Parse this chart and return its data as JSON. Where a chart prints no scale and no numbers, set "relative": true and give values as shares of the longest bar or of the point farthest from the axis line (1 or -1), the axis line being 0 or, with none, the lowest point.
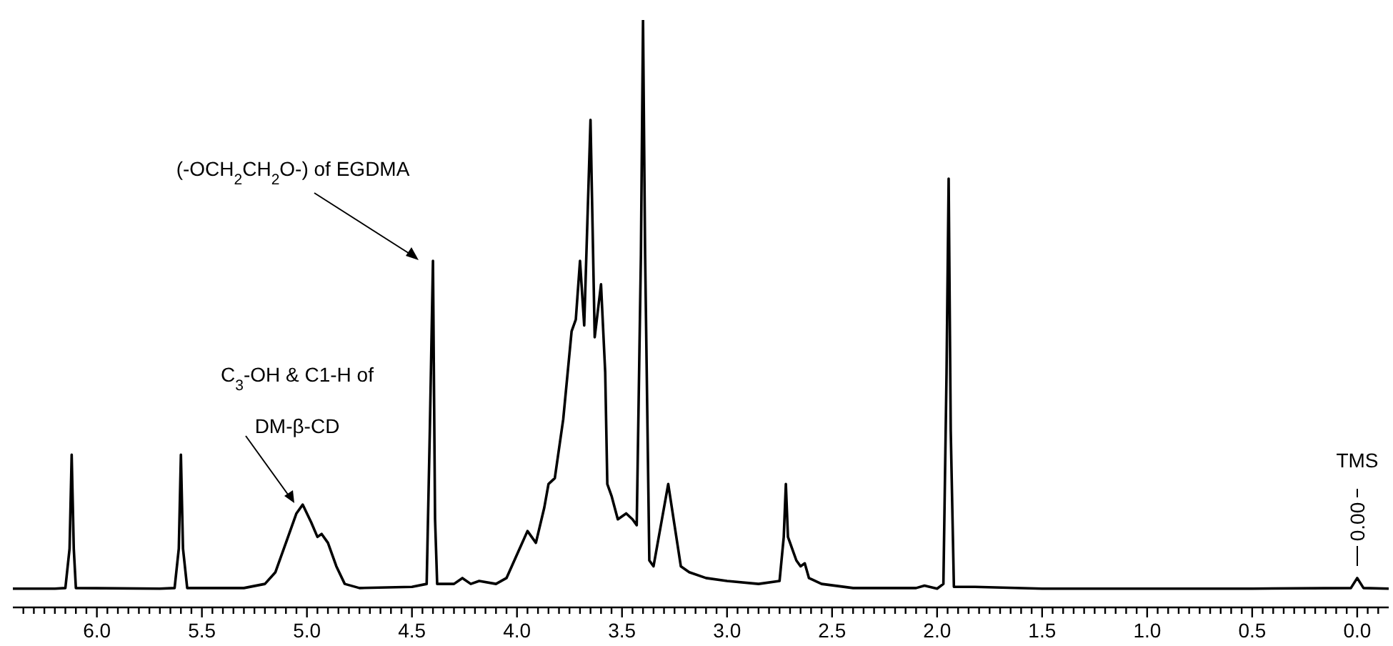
{
  "chart_data": {
    "type": "line",
    "relative": true,
    "marker": "none",
    "line_style": "solid",
    "tick_labels": "x",
    "xlim": [
      6.4,
      -0.15
    ],
    "xticks": [
      {
        "value": 6.35,
        "label": null
      },
      {
        "value": 6.3,
        "label": null
      },
      {
        "value": 6.25,
        "label": null
      },
      {
        "value": 6.2,
        "label": null
      },
      {
        "value": 6.15,
        "label": null
      },
      {
        "value": 6.1,
        "label": null
      },
      {
        "value": 6.05,
        "label": null
      },
      {
        "value": 6,
        "label": "6.0"
      },
      {
        "value": 5.95,
        "label": null
      },
      {
        "value": 5.9,
        "label": null
      },
      {
        "value": 5.85,
        "label": null
      },
      {
        "value": 5.8,
        "label": null
      },
      {
        "value": 5.75,
        "label": null
      },
      {
        "value": 5.7,
        "label": null
      },
      {
        "value": 5.65,
        "label": null
      },
      {
        "value": 5.6,
        "label": null
      },
      {
        "value": 5.55,
        "label": null
      },
      {
        "value": 5.5,
        "label": "5.5"
      },
      {
        "value": 5.45,
        "label": null
      },
      {
        "value": 5.4,
        "label": null
      },
      {
        "value": 5.35,
        "label": null
      },
      {
        "value": 5.3,
        "label": null
      },
      {
        "value": 5.25,
        "label": null
      },
      {
        "value": 5.2,
        "label": null
      },
      {
        "value": 5.15,
        "label": null
      },
      {
        "value": 5.1,
        "label": null
      },
      {
        "value": 5.05,
        "label": null
      },
      {
        "value": 5,
        "label": "5.0"
      },
      {
        "value": 4.95,
        "label": null
      },
      {
        "value": 4.9,
        "label": null
      },
      {
        "value": 4.85,
        "label": null
      },
      {
        "value": 4.8,
        "label": null
      },
      {
        "value": 4.75,
        "label": null
      },
      {
        "value": 4.7,
        "label": null
      },
      {
        "value": 4.65,
        "label": null
      },
      {
        "value": 4.6,
        "label": null
      },
      {
        "value": 4.55,
        "label": null
      },
      {
        "value": 4.5,
        "label": "4.5"
      },
      {
        "value": 4.45,
        "label": null
      },
      {
        "value": 4.4,
        "label": null
      },
      {
        "value": 4.35,
        "label": null
      },
      {
        "value": 4.3,
        "label": null
      },
      {
        "value": 4.25,
        "label": null
      },
      {
        "value": 4.2,
        "label": null
      },
      {
        "value": 4.15,
        "label": null
      },
      {
        "value": 4.1,
        "label": null
      },
      {
        "value": 4.05,
        "label": null
      },
      {
        "value": 4,
        "label": "4.0"
      },
      {
        "value": 3.95,
        "label": null
      },
      {
        "value": 3.9,
        "label": null
      },
      {
        "value": 3.85,
        "label": null
      },
      {
        "value": 3.8,
        "label": null
      },
      {
        "value": 3.75,
        "label": null
      },
      {
        "value": 3.7,
        "label": null
      },
      {
        "value": 3.65,
        "label": null
      },
      {
        "value": 3.6,
        "label": null
      },
      {
        "value": 3.55,
        "label": null
      },
      {
        "value": 3.5,
        "label": "3.5"
      },
      {
        "value": 3.45,
        "label": null
      },
      {
        "value": 3.4,
        "label": null
      },
      {
        "value": 3.35,
        "label": null
      },
      {
        "value": 3.3,
        "label": null
      },
      {
        "value": 3.25,
        "label": null
      },
      {
        "value": 3.2,
        "label": null
      },
      {
        "value": 3.15,
        "label": null
      },
      {
        "value": 3.1,
        "label": null
      },
      {
        "value": 3.05,
        "label": null
      },
      {
        "value": 3,
        "label": "3.0"
      },
      {
        "value": 2.95,
        "label": null
      },
      {
        "value": 2.9,
        "label": null
      },
      {
        "value": 2.85,
        "label": null
      },
      {
        "value": 2.8,
        "label": null
      },
      {
        "value": 2.75,
        "label": null
      },
      {
        "value": 2.7,
        "label": null
      },
      {
        "value": 2.65,
        "label": null
      },
      {
        "value": 2.6,
        "label": null
      },
      {
        "value": 2.55,
        "label": null
      },
      {
        "value": 2.5,
        "label": "2.5"
      },
      {
        "value": 2.45,
        "label": null
      },
      {
        "value": 2.4,
        "label": null
      },
      {
        "value": 2.35,
        "label": null
      },
      {
        "value": 2.3,
        "label": null
      },
      {
        "value": 2.25,
        "label": null
      },
      {
        "value": 2.2,
        "label": null
      },
      {
        "value": 2.15,
        "label": null
      },
      {
        "value": 2.1,
        "label": null
      },
      {
        "value": 2.05,
        "label": null
      },
      {
        "value": 2,
        "label": "2.0"
      },
      {
        "value": 1.95,
        "label": null
      },
      {
        "value": 1.9,
        "label": null
      },
      {
        "value": 1.85,
        "label": null
      },
      {
        "value": 1.8,
        "label": null
      },
      {
        "value": 1.75,
        "label": null
      },
      {
        "value": 1.7,
        "label": null
      },
      {
        "value": 1.65,
        "label": null
      },
      {
        "value": 1.6,
        "label": null
      },
      {
        "value": 1.55,
        "label": null
      },
      {
        "value": 1.5,
        "label": "1.5"
      },
      {
        "value": 1.45,
        "label": null
      },
      {
        "value": 1.4,
        "label": null
      },
      {
        "value": 1.35,
        "label": null
      },
      {
        "value": 1.3,
        "label": null
      },
      {
        "value": 1.25,
        "label": null
      },
      {
        "value": 1.2,
        "label": null
      },
      {
        "value": 1.15,
        "label": null
      },
      {
        "value": 1.1,
        "label": null
      },
      {
        "value": 1.05,
        "label": null
      },
      {
        "value": 1,
        "label": "1.0"
      },
      {
        "value": 0.95,
        "label": null
      },
      {
        "value": 0.9,
        "label": null
      },
      {
        "value": 0.85,
        "label": null
      },
      {
        "value": 0.8,
        "label": null
      },
      {
        "value": 0.75,
        "label": null
      },
      {
        "value": 0.7,
        "label": null
      },
      {
        "value": 0.65,
        "label": null
      },
      {
        "value": 0.6,
        "label": null
      },
      {
        "value": 0.55,
        "label": null
      },
      {
        "value": 0.5,
        "label": "0.5"
      },
      {
        "value": 0.45,
        "label": null
      },
      {
        "value": 0.4,
        "label": null
      },
      {
        "value": 0.35,
        "label": null
      },
      {
        "value": 0.3,
        "label": null
      },
      {
        "value": 0.25,
        "label": null
      },
      {
        "value": 0.2,
        "label": null
      },
      {
        "value": 0.15,
        "label": null
      },
      {
        "value": 0.1,
        "label": null
      },
      {
        "value": 0.05,
        "label": null
      },
      {
        "value": 0,
        "label": "0.0"
      },
      {
        "value": -0.05,
        "label": null
      },
      {
        "value": -0.1,
        "label": null
      }
    ],
    "annotations": [
      "(-OCH$_{2}$CH$_{2}$O-) of EGDMA",
      "C$_{3}$-OH & C1-H of DM-β-CD",
      "TMS",
      "0.00"
    ],
    "series": [
      {
        "color": "#000000",
        "x": [
          6.4,
          6.2,
          6.15,
          6.13,
          6.12,
          6.11,
          6.1,
          5.7,
          5.63,
          5.61,
          5.6,
          5.59,
          5.57,
          5.3,
          5.2,
          5.15,
          5.1,
          5.05,
          5.02,
          4.98,
          4.95,
          4.93,
          4.9,
          4.86,
          4.82,
          4.75,
          4.5,
          4.43,
          4.415,
          4.4,
          4.39,
          4.38,
          4.3,
          4.26,
          4.22,
          4.18,
          4.1,
          4.05,
          4,
          3.95,
          3.91,
          3.87,
          3.85,
          3.82,
          3.78,
          3.74,
          3.72,
          3.7,
          3.68,
          3.65,
          3.63,
          3.6,
          3.58,
          3.57,
          3.55,
          3.52,
          3.48,
          3.45,
          3.43,
          3.41,
          3.4,
          3.39,
          3.37,
          3.35,
          3.31,
          3.28,
          3.25,
          3.22,
          3.18,
          3.1,
          3,
          2.85,
          2.75,
          2.73,
          2.72,
          2.71,
          2.69,
          2.67,
          2.65,
          2.63,
          2.61,
          2.55,
          2.4,
          2.1,
          2.06,
          2,
          1.97,
          1.955,
          1.945,
          1.935,
          1.92,
          1.82,
          1.5,
          0.5,
          0.03,
          0,
          -0.03,
          -0.15
        ],
        "values": [
          0.032,
          0.032,
          0.033,
          0.1,
          0.26,
          0.1,
          0.033,
          0.032,
          0.033,
          0.1,
          0.26,
          0.1,
          0.033,
          0.033,
          0.04,
          0.06,
          0.11,
          0.16,
          0.175,
          0.145,
          0.12,
          0.125,
          0.11,
          0.07,
          0.04,
          0.033,
          0.035,
          0.04,
          0.3,
          0.59,
          0.15,
          0.04,
          0.04,
          0.05,
          0.04,
          0.045,
          0.04,
          0.05,
          0.09,
          0.13,
          0.11,
          0.17,
          0.21,
          0.22,
          0.32,
          0.47,
          0.49,
          0.59,
          0.48,
          0.83,
          0.46,
          0.55,
          0.4,
          0.21,
          0.19,
          0.15,
          0.16,
          0.15,
          0.14,
          0.6,
          1,
          0.6,
          0.08,
          0.07,
          0.15,
          0.21,
          0.14,
          0.07,
          0.06,
          0.05,
          0.045,
          0.04,
          0.045,
          0.12,
          0.21,
          0.12,
          0.1,
          0.08,
          0.07,
          0.075,
          0.05,
          0.04,
          0.033,
          0.033,
          0.037,
          0.032,
          0.04,
          0.4,
          0.73,
          0.3,
          0.035,
          0.035,
          0.032,
          0.032,
          0.033,
          0.05,
          0.033,
          0.032
        ]
      }
    ]
  }
}
